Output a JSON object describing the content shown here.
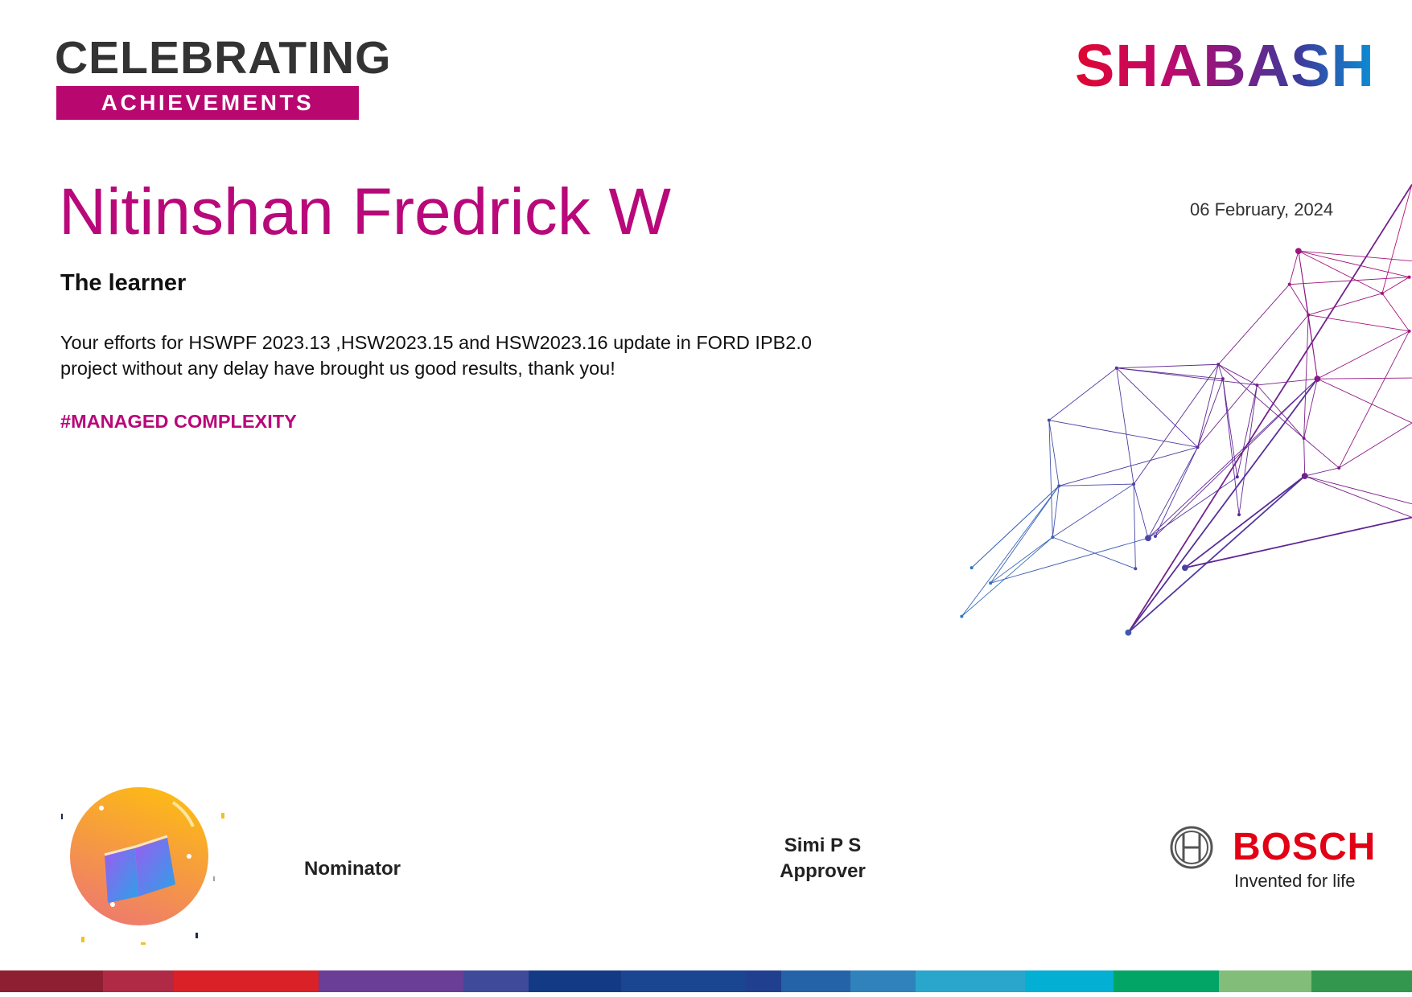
{
  "header": {
    "celebrating": "CELEBRATING",
    "achievements": "ACHIEVEMENTS",
    "brand": "SHABASH"
  },
  "award": {
    "recipient": "Nitinshan Fredrick W",
    "date": "06 February, 2024",
    "title": "The learner",
    "message": "Your efforts for HSWPF 2023.13 ,HSW2023.15 and HSW2023.16 update in FORD IPB2.0 project without any delay have brought us good results, thank you!",
    "hashtag": "#MANAGED COMPLEXITY",
    "badge_icon": "open-book-medal-icon"
  },
  "footer": {
    "nominator_label": "Nominator",
    "approver_name": "Simi P S",
    "approver_label": "Approver",
    "company": "BOSCH",
    "tagline": "Invented for life"
  },
  "colors": {
    "accent": "#b8087a",
    "brand_red": "#e20015",
    "stripe": [
      "#8e1f33",
      "#b02a45",
      "#da2128",
      "#6a3d96",
      "#3f4a9a",
      "#133b85",
      "#1a4590",
      "#20408f",
      "#2563a8",
      "#2f82bb",
      "#2aa6cd",
      "#03afd3",
      "#03a566",
      "#82bd79",
      "#33984e"
    ]
  }
}
